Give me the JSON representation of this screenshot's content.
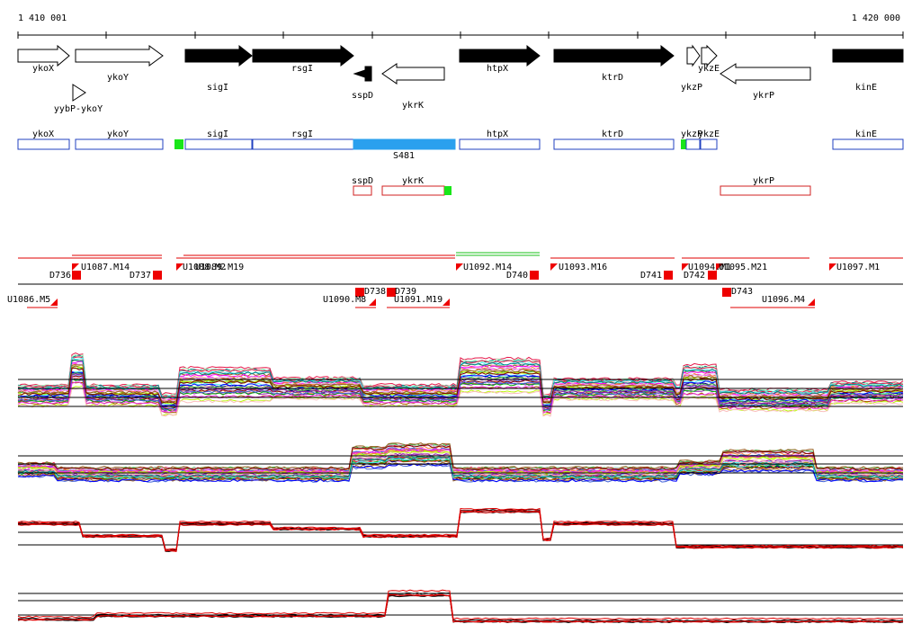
{
  "ruler": {
    "start_label": "1 410 001",
    "end_label": "1 420 000"
  },
  "colors": {
    "gene_fill": "#000000",
    "gene_outline": "#000000",
    "region_fwd": "#2040c0",
    "region_rev": "#d02020",
    "region_highlight": "#2aa0ee",
    "marker_green": "#19e619",
    "marker_red": "#ee0000",
    "trace_black": "#000000",
    "trace_red": "#e00000"
  },
  "genes": [
    {
      "label": "ykoX",
      "strand": "+",
      "filled": false
    },
    {
      "label": "ykoY",
      "strand": "+",
      "filled": false
    },
    {
      "label": "yybP-ykoY",
      "strand": "+",
      "filled": false
    },
    {
      "label": "sigI",
      "strand": "+",
      "filled": true
    },
    {
      "label": "rsgI",
      "strand": "+",
      "filled": true
    },
    {
      "label": "sspD",
      "strand": "-",
      "filled": true
    },
    {
      "label": "ykrK",
      "strand": "-",
      "filled": false
    },
    {
      "label": "htpX",
      "strand": "+",
      "filled": true
    },
    {
      "label": "ktrD",
      "strand": "+",
      "filled": true
    },
    {
      "label": "ykzP",
      "strand": "+",
      "filled": false
    },
    {
      "label": "ykzE",
      "strand": "+",
      "filled": false
    },
    {
      "label": "ykrP",
      "strand": "-",
      "filled": false
    },
    {
      "label": "kinE",
      "strand": "+",
      "filled": true
    }
  ],
  "forward_regions": [
    {
      "label": "ykoX"
    },
    {
      "label": "ykoY"
    },
    {
      "label": "sigI"
    },
    {
      "label": "rsgI"
    },
    {
      "label": "S481"
    },
    {
      "label": "htpX"
    },
    {
      "label": "ktrD"
    },
    {
      "label": "ykzP"
    },
    {
      "label": "ykzE"
    },
    {
      "label": "kinE"
    }
  ],
  "reverse_regions": [
    {
      "label": "sspD"
    },
    {
      "label": "ykrK"
    },
    {
      "label": "ykrP"
    }
  ],
  "transcription_units": [
    "U1086.M5",
    "D736",
    "U1087.M14",
    "D737",
    "U1088.M2",
    "U1089.M19",
    "U1090.M8",
    "D738",
    "D739",
    "U1091.M19",
    "U1092.M14",
    "D740",
    "U1093.M16",
    "D741",
    "D742",
    "U1094.M1",
    "U1095.M21",
    "D743",
    "U1096.M4",
    "U1097.M1"
  ]
}
